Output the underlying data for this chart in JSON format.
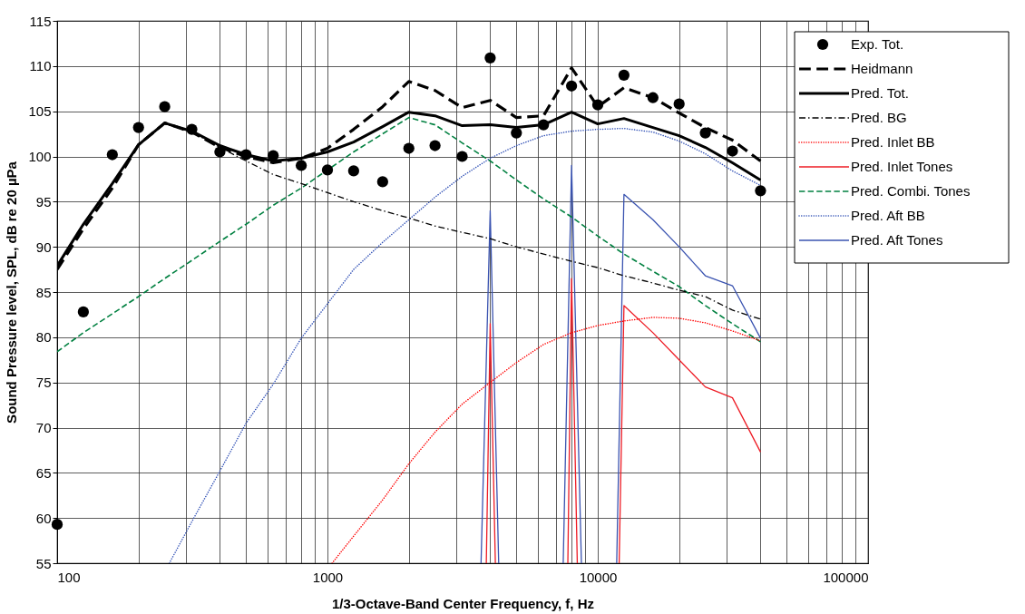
{
  "chart_data": {
    "type": "line",
    "xlabel": "1/3-Octave-Band Center Frequency, f, Hz",
    "ylabel": "Sound Pressure level, SPL, dB re 20 µPa",
    "log": "x",
    "grid": true,
    "legend": "top right",
    "xlim": [
      100,
      100000
    ],
    "ylim": [
      55,
      115
    ],
    "xticks": [
      100,
      {
        "value": 200,
        "label": null
      },
      {
        "value": 300,
        "label": null
      },
      {
        "value": 400,
        "label": null
      },
      {
        "value": 500,
        "label": null
      },
      {
        "value": 600,
        "label": null
      },
      {
        "value": 700,
        "label": null
      },
      {
        "value": 800,
        "label": null
      },
      {
        "value": 900,
        "label": null
      },
      1000,
      {
        "value": 2000,
        "label": null
      },
      {
        "value": 3000,
        "label": null
      },
      {
        "value": 4000,
        "label": null
      },
      {
        "value": 5000,
        "label": null
      },
      {
        "value": 6000,
        "label": null
      },
      {
        "value": 7000,
        "label": null
      },
      {
        "value": 8000,
        "label": null
      },
      {
        "value": 9000,
        "label": null
      },
      10000,
      {
        "value": 20000,
        "label": null
      },
      {
        "value": 30000,
        "label": null
      },
      {
        "value": 40000,
        "label": null
      },
      {
        "value": 50000,
        "label": null
      },
      {
        "value": 60000,
        "label": null
      },
      {
        "value": 70000,
        "label": null
      },
      {
        "value": 80000,
        "label": null
      },
      {
        "value": 90000,
        "label": null
      },
      100000
    ],
    "yticks": [
      55,
      60,
      65,
      70,
      75,
      80,
      85,
      90,
      95,
      100,
      105,
      110,
      115
    ],
    "x": [
      100,
      125,
      160,
      200,
      250,
      315,
      400,
      500,
      630,
      800,
      1000,
      1250,
      1600,
      2000,
      2500,
      3150,
      4000,
      5000,
      6300,
      8000,
      10000,
      12500,
      16000,
      20000,
      25000,
      31500,
      40000
    ],
    "series": [
      {
        "name": "Exp. Tot.",
        "type": "scatter",
        "marker": "circle",
        "color": "#000000",
        "values": [
          59.3,
          82.8,
          100.2,
          103.2,
          105.5,
          103.0,
          100.5,
          100.2,
          100.1,
          99.0,
          98.5,
          98.4,
          97.2,
          100.9,
          101.2,
          100.0,
          110.9,
          102.6,
          103.5,
          107.8,
          105.7,
          109.0,
          106.5,
          105.8,
          102.6,
          100.6,
          96.2
        ]
      },
      {
        "name": "Heidmann",
        "marker": "none",
        "line_style": "dashed",
        "color": "#000000",
        "values": [
          87.5,
          92.0,
          96.5,
          101.3,
          103.7,
          102.7,
          101.0,
          100.0,
          99.3,
          99.8,
          100.9,
          103.0,
          105.5,
          108.3,
          107.3,
          105.4,
          106.2,
          104.3,
          104.5,
          109.8,
          105.5,
          107.6,
          106.5,
          104.8,
          103.2,
          101.8,
          99.5
        ]
      },
      {
        "name": "Pred. Tot.",
        "marker": "none",
        "line_style": "solid",
        "color": "#000000",
        "values": [
          87.9,
          92.5,
          97.0,
          101.3,
          103.7,
          102.8,
          101.2,
          100.2,
          99.5,
          99.8,
          100.5,
          101.6,
          103.3,
          104.9,
          104.5,
          103.4,
          103.5,
          103.2,
          103.5,
          104.9,
          103.6,
          104.2,
          103.2,
          102.3,
          101.0,
          99.3,
          97.4
        ]
      },
      {
        "name": "Pred. BG",
        "marker": "none",
        "line_style": "dashdot",
        "color": "#000000",
        "values": [
          87.8,
          92.4,
          96.9,
          101.2,
          103.6,
          102.7,
          101.0,
          99.5,
          98.0,
          97.0,
          96.0,
          95.0,
          94.0,
          93.2,
          92.3,
          91.6,
          90.9,
          90.0,
          89.2,
          88.4,
          87.7,
          86.8,
          86.0,
          85.2,
          84.5,
          83.0,
          82.0
        ]
      },
      {
        "name": "Pred. Inlet BB",
        "marker": "none",
        "line_style": "dotted",
        "color": "#ff0000",
        "x": [
          1040,
          1250,
          1600,
          2000,
          2500,
          3150,
          4000,
          5000,
          6300,
          8000,
          10000,
          12500,
          16000,
          20000,
          25000,
          31500,
          40000
        ],
        "values": [
          55.0,
          58.0,
          62.0,
          66.0,
          69.5,
          72.6,
          75.0,
          77.2,
          79.2,
          80.5,
          81.3,
          81.8,
          82.2,
          82.1,
          81.6,
          80.7,
          79.6
        ]
      },
      {
        "name": "Pred. Inlet Tones",
        "marker": "none",
        "line_style": "solid",
        "color": "#ee1c25",
        "x": [
          3870,
          4000,
          4180,
          5000,
          7750,
          8000,
          8400,
          10000,
          12000,
          12500,
          16000,
          20000,
          25000,
          31500,
          40000
        ],
        "values": [
          55.0,
          81.5,
          55.0,
          null,
          55.0,
          86.5,
          55.0,
          null,
          55.0,
          83.5,
          80.5,
          77.5,
          74.5,
          73.3,
          67.3
        ]
      },
      {
        "name": "Pred. Combi. Tones",
        "marker": "none",
        "line_style": "dashed",
        "color": "#008040",
        "values": [
          78.4,
          80.5,
          82.6,
          84.5,
          86.5,
          88.5,
          90.6,
          92.5,
          94.6,
          96.5,
          98.5,
          100.5,
          102.5,
          104.3,
          103.5,
          101.5,
          99.5,
          97.4,
          95.3,
          93.3,
          91.2,
          89.2,
          87.3,
          85.6,
          83.5,
          81.5,
          79.5
        ]
      },
      {
        "name": "Pred. Aft BB",
        "marker": "none",
        "line_style": "dotted",
        "color": "#2f4fb5",
        "x": [
          260,
          315,
          400,
          500,
          630,
          800,
          1000,
          1250,
          1600,
          2000,
          2500,
          3150,
          4000,
          5000,
          6300,
          8000,
          10000,
          12500,
          16000,
          20000,
          25000,
          31500,
          40000
        ],
        "values": [
          55.0,
          59.6,
          65.2,
          70.5,
          74.8,
          79.9,
          83.7,
          87.5,
          90.5,
          93.0,
          95.5,
          97.8,
          99.8,
          101.2,
          102.3,
          102.8,
          103.0,
          103.1,
          102.7,
          101.7,
          100.3,
          98.4,
          96.8
        ]
      },
      {
        "name": "Pred. Aft Tones",
        "marker": "none",
        "line_style": "solid",
        "color": "#3a53b0",
        "x": [
          3700,
          4000,
          4300,
          5000,
          7450,
          8000,
          8700,
          10000,
          11750,
          12500,
          16000,
          20000,
          25000,
          31500,
          40000
        ],
        "values": [
          55.0,
          94.0,
          55.0,
          null,
          55.0,
          99.0,
          55.0,
          null,
          55.0,
          95.8,
          93.0,
          90.0,
          86.8,
          85.7,
          79.9
        ]
      }
    ]
  }
}
